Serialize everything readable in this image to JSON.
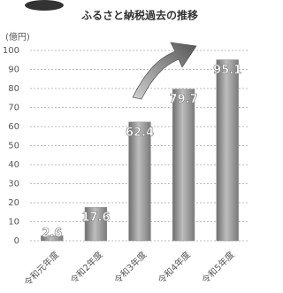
{
  "chart_data": {
    "type": "bar",
    "title": "ふるさと納税過去の推移",
    "y_label": "(億円)",
    "categories": [
      "令和元年度",
      "令和2年度",
      "令和3年度",
      "令和4年度",
      "令和5年度"
    ],
    "values": [
      2.6,
      17.6,
      62.4,
      79.7,
      95.1
    ],
    "color": "#8c8c8c",
    "ylim": [
      0,
      100
    ],
    "yticks": [
      0,
      10,
      20,
      30,
      40,
      50,
      60,
      70,
      80,
      90,
      100
    ],
    "grid": true
  }
}
